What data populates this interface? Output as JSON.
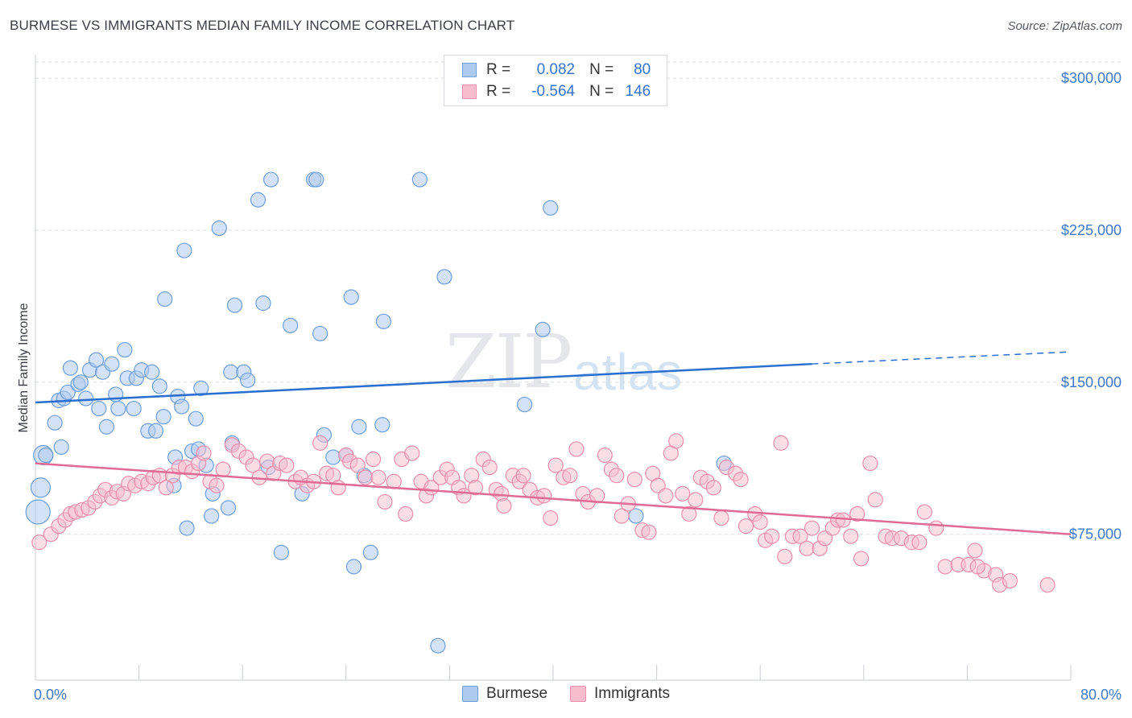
{
  "title": "BURMESE VS IMMIGRANTS MEDIAN FAMILY INCOME CORRELATION CHART",
  "source": "Source: ZipAtlas.com",
  "watermark": {
    "zip": "ZIP",
    "atlas": "atlas"
  },
  "legend": {
    "rows": [
      {
        "r_label": "R =",
        "r_value": "0.082",
        "n_label": "N =",
        "n_value": "80"
      },
      {
        "r_label": "R =",
        "r_value": "-0.564",
        "n_label": "N =",
        "n_value": "146"
      }
    ]
  },
  "bottom_legend": {
    "burmese": "Burmese",
    "immigrants": "Immigrants"
  },
  "colors": {
    "burmese_fill": "#aecbef",
    "burmese_stroke": "#6d9fdc",
    "burmese_line": "#2a6fd0",
    "immigrants_fill": "#f7bccd",
    "immigrants_stroke": "#ea8fab",
    "immigrants_line": "#e06b95",
    "tick": "#3f78c7",
    "grid": "#d9dce0"
  },
  "chart_data": {
    "type": "scatter",
    "title": "BURMESE VS IMMIGRANTS MEDIAN FAMILY INCOME CORRELATION CHART",
    "xlabel": "",
    "ylabel": "Median Family Income",
    "xlim": [
      0,
      80
    ],
    "ylim": [
      3000,
      308000
    ],
    "x_tick_labels": [
      "0.0%",
      "80.0%"
    ],
    "y_ticks": [
      75000,
      150000,
      225000,
      300000
    ],
    "y_tick_labels": [
      "$75,000",
      "$150,000",
      "$225,000",
      "$300,000"
    ],
    "grid": true,
    "legend_position": "top-center",
    "series": [
      {
        "name": "Burmese",
        "R": 0.082,
        "N": 80,
        "trend": {
          "x0": 0,
          "y0": 140000,
          "x1": 60,
          "y1": 159000,
          "dashed_to_x": 80,
          "dashed_to_y": 165000
        },
        "points": [
          [
            0.2,
            86000,
            3
          ],
          [
            0.4,
            98000,
            2
          ],
          [
            0.6,
            114000,
            2
          ],
          [
            0.8,
            114000,
            1
          ],
          [
            1.5,
            130000,
            1
          ],
          [
            1.8,
            141000,
            1
          ],
          [
            2.0,
            118000,
            1
          ],
          [
            2.2,
            142000,
            1
          ],
          [
            2.5,
            145000,
            1
          ],
          [
            2.7,
            157000,
            1
          ],
          [
            3.3,
            149000,
            1
          ],
          [
            3.5,
            150000,
            1
          ],
          [
            3.9,
            142000,
            1
          ],
          [
            4.2,
            156000,
            1
          ],
          [
            4.7,
            161000,
            1
          ],
          [
            4.9,
            137000,
            1
          ],
          [
            5.2,
            155000,
            1
          ],
          [
            5.5,
            128000,
            1
          ],
          [
            5.9,
            159000,
            1
          ],
          [
            6.2,
            144000,
            1
          ],
          [
            6.4,
            137000,
            1
          ],
          [
            6.9,
            166000,
            1
          ],
          [
            7.1,
            152000,
            1
          ],
          [
            7.6,
            137000,
            1
          ],
          [
            7.8,
            152000,
            1
          ],
          [
            8.2,
            156000,
            1
          ],
          [
            8.7,
            126000,
            1
          ],
          [
            9.0,
            155000,
            1
          ],
          [
            9.3,
            126000,
            1
          ],
          [
            9.6,
            148000,
            1
          ],
          [
            9.9,
            133000,
            1
          ],
          [
            10.0,
            191000,
            1
          ],
          [
            10.8,
            113000,
            1
          ],
          [
            11.0,
            143000,
            1
          ],
          [
            11.3,
            138000,
            1
          ],
          [
            11.5,
            215000,
            1
          ],
          [
            12.1,
            116000,
            1
          ],
          [
            12.4,
            132000,
            1
          ],
          [
            12.6,
            117000,
            1
          ],
          [
            12.8,
            147000,
            1
          ],
          [
            13.2,
            109000,
            1
          ],
          [
            13.7,
            95000,
            1
          ],
          [
            14.2,
            226000,
            1
          ],
          [
            15.1,
            155000,
            1
          ],
          [
            15.4,
            188000,
            1
          ],
          [
            16.1,
            155000,
            1
          ],
          [
            16.4,
            151000,
            1
          ],
          [
            17.2,
            240000,
            1
          ],
          [
            17.6,
            189000,
            1
          ],
          [
            18.2,
            250000,
            1
          ],
          [
            19.7,
            178000,
            1
          ],
          [
            20.6,
            95000,
            1
          ],
          [
            21.5,
            250000,
            1
          ],
          [
            21.7,
            250000,
            1
          ],
          [
            22.0,
            174000,
            1
          ],
          [
            22.3,
            124000,
            1
          ],
          [
            23.0,
            113000,
            1
          ],
          [
            24.4,
            192000,
            1
          ],
          [
            24.6,
            59000,
            1
          ],
          [
            25.0,
            128000,
            1
          ],
          [
            25.4,
            104000,
            1
          ],
          [
            26.8,
            129000,
            1
          ],
          [
            26.9,
            180000,
            1
          ],
          [
            29.7,
            250000,
            1
          ],
          [
            31.6,
            202000,
            1
          ],
          [
            31.1,
            20000,
            1
          ],
          [
            37.8,
            139000,
            1
          ],
          [
            39.2,
            176000,
            1
          ],
          [
            39.8,
            236000,
            1
          ],
          [
            46.4,
            84000,
            1
          ],
          [
            53.2,
            110000,
            1
          ],
          [
            10.7,
            99000,
            1
          ],
          [
            15.2,
            120000,
            1
          ],
          [
            18.0,
            108000,
            1
          ],
          [
            13.6,
            84000,
            1
          ],
          [
            24.0,
            114000,
            1
          ],
          [
            11.7,
            78000,
            1
          ],
          [
            19.0,
            66000,
            1
          ],
          [
            25.9,
            66000,
            1
          ],
          [
            14.9,
            88000,
            1
          ]
        ]
      },
      {
        "name": "Immigrants",
        "R": -0.564,
        "N": 146,
        "trend": {
          "x0": 0,
          "y0": 110000,
          "x1": 80,
          "y1": 75000
        },
        "points": [
          [
            0.3,
            71000
          ],
          [
            1.2,
            75000
          ],
          [
            1.8,
            79000
          ],
          [
            2.3,
            82000
          ],
          [
            2.7,
            85000
          ],
          [
            3.1,
            86000
          ],
          [
            3.6,
            87000
          ],
          [
            4.1,
            88000
          ],
          [
            4.6,
            91000
          ],
          [
            5.0,
            94000
          ],
          [
            5.4,
            97000
          ],
          [
            5.9,
            93000
          ],
          [
            6.3,
            96000
          ],
          [
            6.8,
            95000
          ],
          [
            7.2,
            100000
          ],
          [
            7.7,
            99000
          ],
          [
            8.2,
            101000
          ],
          [
            8.7,
            100000
          ],
          [
            9.1,
            103000
          ],
          [
            9.6,
            104000
          ],
          [
            10.1,
            98000
          ],
          [
            10.6,
            104000
          ],
          [
            11.1,
            108000
          ],
          [
            11.6,
            108000
          ],
          [
            12.1,
            106000
          ],
          [
            12.6,
            110000
          ],
          [
            13.0,
            115000
          ],
          [
            13.5,
            101000
          ],
          [
            14.0,
            99000
          ],
          [
            14.5,
            107000
          ],
          [
            15.2,
            119000
          ],
          [
            15.7,
            116000
          ],
          [
            16.3,
            113000
          ],
          [
            16.8,
            109000
          ],
          [
            17.3,
            103000
          ],
          [
            17.9,
            111000
          ],
          [
            18.4,
            105000
          ],
          [
            18.9,
            110000
          ],
          [
            19.4,
            109000
          ],
          [
            20.1,
            101000
          ],
          [
            20.5,
            103000
          ],
          [
            21.0,
            99000
          ],
          [
            21.5,
            101000
          ],
          [
            22.0,
            120000
          ],
          [
            22.5,
            105000
          ],
          [
            23.0,
            104000
          ],
          [
            23.4,
            98000
          ],
          [
            24.0,
            114000
          ],
          [
            24.3,
            111000
          ],
          [
            24.9,
            109000
          ],
          [
            25.5,
            103000
          ],
          [
            26.1,
            112000
          ],
          [
            26.5,
            103000
          ],
          [
            27.0,
            91000
          ],
          [
            27.7,
            101000
          ],
          [
            28.3,
            112000
          ],
          [
            28.6,
            85000
          ],
          [
            29.1,
            115000
          ],
          [
            29.8,
            101000
          ],
          [
            30.2,
            94000
          ],
          [
            30.6,
            98000
          ],
          [
            31.3,
            103000
          ],
          [
            31.8,
            107000
          ],
          [
            32.2,
            103000
          ],
          [
            32.7,
            98000
          ],
          [
            33.1,
            94000
          ],
          [
            33.7,
            104000
          ],
          [
            34.0,
            98000
          ],
          [
            34.6,
            112000
          ],
          [
            35.1,
            108000
          ],
          [
            35.6,
            97000
          ],
          [
            36.0,
            95000
          ],
          [
            36.2,
            89000
          ],
          [
            36.9,
            104000
          ],
          [
            37.4,
            101000
          ],
          [
            37.7,
            104000
          ],
          [
            38.2,
            97000
          ],
          [
            38.8,
            93000
          ],
          [
            39.3,
            94000
          ],
          [
            39.8,
            83000
          ],
          [
            40.2,
            109000
          ],
          [
            40.8,
            103000
          ],
          [
            41.3,
            104000
          ],
          [
            41.8,
            117000
          ],
          [
            42.3,
            95000
          ],
          [
            42.7,
            91000
          ],
          [
            43.4,
            94000
          ],
          [
            44.0,
            114000
          ],
          [
            44.5,
            107000
          ],
          [
            44.9,
            104000
          ],
          [
            45.3,
            84000
          ],
          [
            45.8,
            90000
          ],
          [
            46.3,
            102000
          ],
          [
            46.9,
            77000
          ],
          [
            47.4,
            76000
          ],
          [
            47.7,
            105000
          ],
          [
            48.1,
            99000
          ],
          [
            48.7,
            94000
          ],
          [
            49.1,
            115000
          ],
          [
            49.5,
            121000
          ],
          [
            50.0,
            95000
          ],
          [
            50.5,
            85000
          ],
          [
            51.0,
            92000
          ],
          [
            51.4,
            103000
          ],
          [
            51.9,
            101000
          ],
          [
            52.4,
            98000
          ],
          [
            53.0,
            83000
          ],
          [
            53.4,
            108000
          ],
          [
            54.1,
            105000
          ],
          [
            54.5,
            102000
          ],
          [
            54.9,
            79000
          ],
          [
            55.6,
            85000
          ],
          [
            56.0,
            81000
          ],
          [
            56.4,
            72000
          ],
          [
            56.9,
            74000
          ],
          [
            57.6,
            120000
          ],
          [
            57.9,
            64000
          ],
          [
            58.5,
            74000
          ],
          [
            59.1,
            74000
          ],
          [
            59.6,
            68000
          ],
          [
            60.0,
            78000
          ],
          [
            60.6,
            68000
          ],
          [
            61.0,
            73000
          ],
          [
            61.6,
            78000
          ],
          [
            62.0,
            82000
          ],
          [
            62.4,
            82000
          ],
          [
            63.0,
            74000
          ],
          [
            63.5,
            85000
          ],
          [
            63.8,
            63000
          ],
          [
            64.5,
            110000
          ],
          [
            64.9,
            92000
          ],
          [
            65.7,
            74000
          ],
          [
            66.2,
            73000
          ],
          [
            66.9,
            73000
          ],
          [
            67.7,
            71000
          ],
          [
            68.3,
            71000
          ],
          [
            68.7,
            86000
          ],
          [
            69.6,
            78000
          ],
          [
            70.3,
            59000
          ],
          [
            71.3,
            60000
          ],
          [
            72.1,
            60000
          ],
          [
            72.6,
            67000
          ],
          [
            73.3,
            57000
          ],
          [
            74.2,
            55000
          ],
          [
            74.5,
            50000
          ],
          [
            75.3,
            52000
          ],
          [
            78.2,
            50000
          ],
          [
            72.8,
            59000
          ]
        ]
      }
    ]
  }
}
